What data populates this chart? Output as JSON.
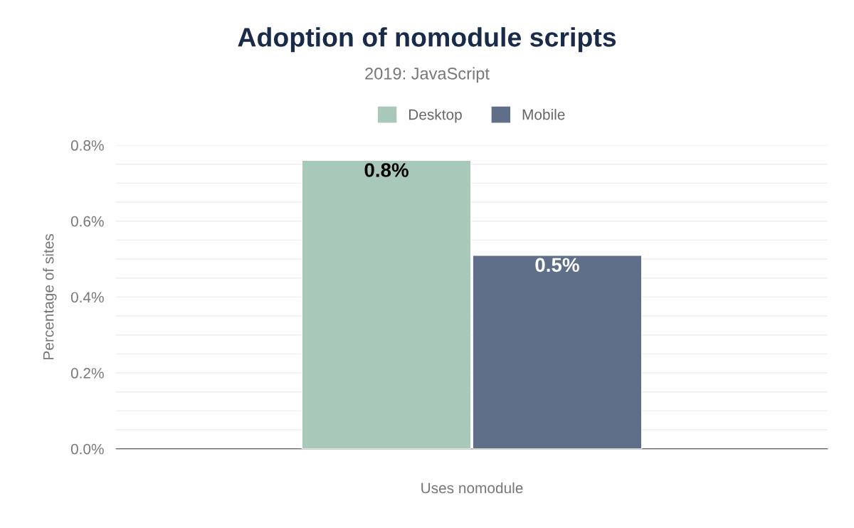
{
  "chart_data": {
    "type": "bar",
    "title": "Adoption of nomodule scripts",
    "subtitle": "2019: JavaScript",
    "xlabel": "Uses nomodule",
    "ylabel": "Percentage of sites",
    "categories": [
      null
    ],
    "series": [
      {
        "name": "Desktop",
        "color": "#a8c9b9",
        "values": [
          0.76
        ],
        "value_labels": [
          "0.8%"
        ]
      },
      {
        "name": "Mobile",
        "color": "#5f6f89",
        "values": [
          0.51
        ],
        "value_labels": [
          "0.5%"
        ]
      }
    ],
    "ylim": [
      0,
      0.8
    ],
    "yticks": [
      {
        "value": 0,
        "label": "0.0%"
      },
      {
        "value": 0.05,
        "label": null
      },
      {
        "value": 0.1,
        "label": null
      },
      {
        "value": 0.15,
        "label": null
      },
      {
        "value": 0.2,
        "label": "0.2%"
      },
      {
        "value": 0.25,
        "label": null
      },
      {
        "value": 0.3,
        "label": null
      },
      {
        "value": 0.35,
        "label": null
      },
      {
        "value": 0.4,
        "label": "0.4%"
      },
      {
        "value": 0.45,
        "label": null
      },
      {
        "value": 0.5,
        "label": null
      },
      {
        "value": 0.55,
        "label": null
      },
      {
        "value": 0.6,
        "label": "0.6%"
      },
      {
        "value": 0.65,
        "label": null
      },
      {
        "value": 0.7,
        "label": null
      },
      {
        "value": 0.75,
        "label": null
      },
      {
        "value": 0.8,
        "label": "0.8%"
      }
    ],
    "grid": "y",
    "legend": "top"
  }
}
